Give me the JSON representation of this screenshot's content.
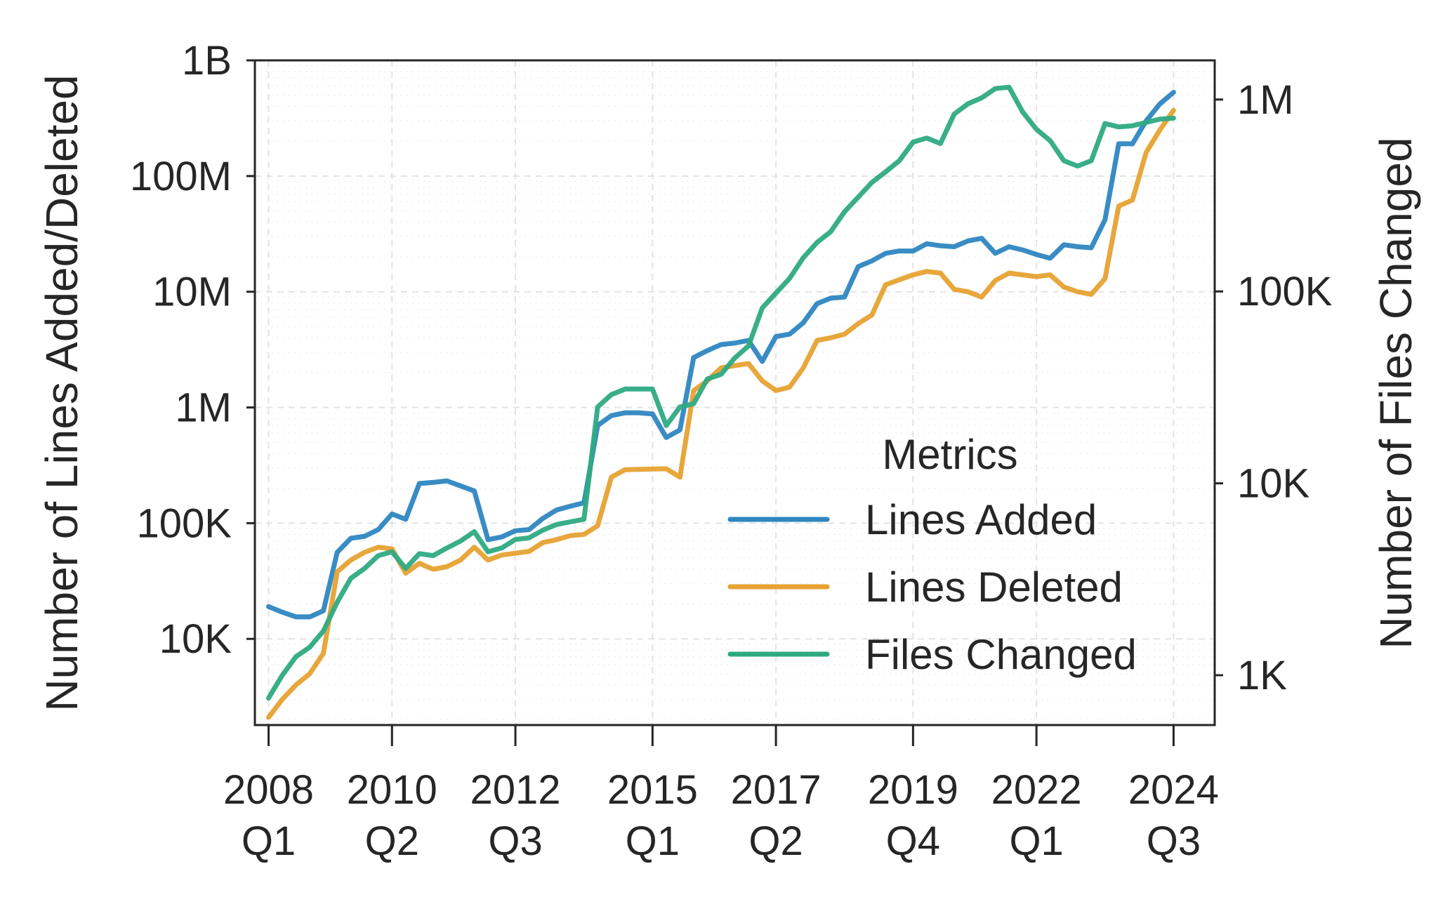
{
  "chart_data": {
    "type": "line",
    "xlabel": "",
    "ylabel": "Number of Lines Added/Deleted",
    "ylabel_right": "Number of Files Changed",
    "x_ticks": [
      {
        "year": "2008",
        "quarter": "Q1"
      },
      {
        "year": "2010",
        "quarter": "Q2"
      },
      {
        "year": "2012",
        "quarter": "Q3"
      },
      {
        "year": "2015",
        "quarter": "Q1"
      },
      {
        "year": "2017",
        "quarter": "Q2"
      },
      {
        "year": "2019",
        "quarter": "Q4"
      },
      {
        "year": "2022",
        "quarter": "Q1"
      },
      {
        "year": "2024",
        "quarter": "Q3"
      }
    ],
    "y_left": {
      "scale": "log",
      "ticks": [
        "10K",
        "100K",
        "1M",
        "10M",
        "100M",
        "1B"
      ],
      "range": [
        1800,
        1000000000
      ]
    },
    "y_right": {
      "scale": "log",
      "ticks": [
        "1K",
        "10K",
        "100K",
        "1M"
      ],
      "range": [
        550,
        1600000
      ]
    },
    "grid": true,
    "legend": {
      "title": "Metrics",
      "placement": "lower-right"
    },
    "x_range": [
      "2007 Q4",
      "2025 Q2"
    ],
    "series": [
      {
        "name": "Lines Added",
        "axis": "left",
        "color": "#2e86c1",
        "x": [
          "2008 Q1",
          "2008 Q2",
          "2008 Q3",
          "2008 Q4",
          "2009 Q1",
          "2009 Q2",
          "2009 Q3",
          "2009 Q4",
          "2010 Q1",
          "2010 Q2",
          "2010 Q3",
          "2010 Q4",
          "2011 Q1",
          "2011 Q2",
          "2011 Q3",
          "2011 Q4",
          "2012 Q1",
          "2012 Q2",
          "2012 Q3",
          "2012 Q4",
          "2013 Q1",
          "2013 Q2",
          "2013 Q3",
          "2013 Q4",
          "2014 Q1",
          "2014 Q2",
          "2014 Q3",
          "2014 Q4",
          "2015 Q1",
          "2015 Q2",
          "2015 Q3",
          "2015 Q4",
          "2016 Q1",
          "2016 Q2",
          "2016 Q3",
          "2016 Q4",
          "2017 Q1",
          "2017 Q2",
          "2017 Q3",
          "2017 Q4",
          "2018 Q1",
          "2018 Q2",
          "2018 Q3",
          "2018 Q4",
          "2019 Q1",
          "2019 Q2",
          "2019 Q3",
          "2019 Q4",
          "2020 Q1",
          "2020 Q2",
          "2020 Q3",
          "2020 Q4",
          "2021 Q1",
          "2021 Q2",
          "2021 Q3",
          "2021 Q4",
          "2022 Q1",
          "2022 Q2",
          "2022 Q3",
          "2022 Q4",
          "2023 Q1",
          "2023 Q2",
          "2023 Q3",
          "2023 Q4",
          "2024 Q1",
          "2024 Q2",
          "2024 Q3"
        ],
        "values": [
          19000,
          17000,
          15500,
          15500,
          17500,
          56000,
          74000,
          77000,
          88000,
          120000,
          108000,
          220000,
          225000,
          232000,
          210000,
          190000,
          72000,
          76000,
          86000,
          88000,
          110000,
          130000,
          140000,
          150000,
          700000,
          850000,
          900000,
          900000,
          880000,
          550000,
          640000,
          2700000,
          3100000,
          3500000,
          3600000,
          3800000,
          2500000,
          4100000,
          4300000,
          5400000,
          7900000,
          8800000,
          9000000,
          16500000,
          18500000,
          21500000,
          22500000,
          22500000,
          26000000,
          25000000,
          24500000,
          27500000,
          29000000,
          21500000,
          24500000,
          23000000,
          21000000,
          19500000,
          25500000,
          24500000,
          24000000,
          42000000,
          190000000,
          190000000,
          300000000,
          420000000,
          530000000
        ]
      },
      {
        "name": "Lines Deleted",
        "axis": "left",
        "color": "#e6a232",
        "x": [
          "2008 Q1",
          "2008 Q2",
          "2008 Q3",
          "2008 Q4",
          "2009 Q1",
          "2009 Q2",
          "2009 Q3",
          "2009 Q4",
          "2010 Q1",
          "2010 Q2",
          "2010 Q3",
          "2010 Q4",
          "2011 Q1",
          "2011 Q2",
          "2011 Q3",
          "2011 Q4",
          "2012 Q1",
          "2012 Q2",
          "2012 Q3",
          "2012 Q4",
          "2013 Q1",
          "2013 Q2",
          "2013 Q3",
          "2013 Q4",
          "2014 Q1",
          "2014 Q2",
          "2014 Q3",
          "2014 Q4",
          "2015 Q1",
          "2015 Q2",
          "2015 Q3",
          "2015 Q4",
          "2016 Q1",
          "2016 Q2",
          "2016 Q3",
          "2016 Q4",
          "2017 Q1",
          "2017 Q2",
          "2017 Q3",
          "2017 Q4",
          "2018 Q1",
          "2018 Q2",
          "2018 Q3",
          "2018 Q4",
          "2019 Q1",
          "2019 Q2",
          "2019 Q3",
          "2019 Q4",
          "2020 Q1",
          "2020 Q2",
          "2020 Q3",
          "2020 Q4",
          "2021 Q1",
          "2021 Q2",
          "2021 Q3",
          "2021 Q4",
          "2022 Q1",
          "2022 Q2",
          "2022 Q3",
          "2022 Q4",
          "2023 Q1",
          "2023 Q2",
          "2023 Q3",
          "2023 Q4",
          "2024 Q1",
          "2024 Q2",
          "2024 Q3"
        ],
        "values": [
          2100,
          3000,
          4000,
          5000,
          7500,
          38000,
          48000,
          56000,
          62000,
          60000,
          37000,
          45000,
          40000,
          42000,
          48000,
          62000,
          48000,
          53000,
          55000,
          57000,
          68000,
          72000,
          78000,
          80000,
          95000,
          250000,
          290000,
          292000,
          294000,
          295000,
          250000,
          1400000,
          1700000,
          2200000,
          2300000,
          2400000,
          1700000,
          1400000,
          1500000,
          2200000,
          3800000,
          4000000,
          4300000,
          5300000,
          6300000,
          11500000,
          12700000,
          14000000,
          15000000,
          14500000,
          10500000,
          10000000,
          9000000,
          12500000,
          14500000,
          14000000,
          13500000,
          14000000,
          11000000,
          10000000,
          9500000,
          13000000,
          55000000,
          62000000,
          160000000,
          250000000,
          370000000
        ]
      },
      {
        "name": "Files Changed",
        "axis": "right",
        "color": "#2eaa82",
        "x": [
          "2008 Q1",
          "2008 Q2",
          "2008 Q3",
          "2008 Q4",
          "2009 Q1",
          "2009 Q2",
          "2009 Q3",
          "2009 Q4",
          "2010 Q1",
          "2010 Q2",
          "2010 Q3",
          "2010 Q4",
          "2011 Q1",
          "2011 Q2",
          "2011 Q3",
          "2011 Q4",
          "2012 Q1",
          "2012 Q2",
          "2012 Q3",
          "2012 Q4",
          "2013 Q1",
          "2013 Q2",
          "2013 Q3",
          "2013 Q4",
          "2014 Q1",
          "2014 Q2",
          "2014 Q3",
          "2014 Q4",
          "2015 Q1",
          "2015 Q2",
          "2015 Q3",
          "2015 Q4",
          "2016 Q1",
          "2016 Q2",
          "2016 Q3",
          "2016 Q4",
          "2017 Q1",
          "2017 Q2",
          "2017 Q3",
          "2017 Q4",
          "2018 Q1",
          "2018 Q2",
          "2018 Q3",
          "2018 Q4",
          "2019 Q1",
          "2019 Q2",
          "2019 Q3",
          "2019 Q4",
          "2020 Q1",
          "2020 Q2",
          "2020 Q3",
          "2020 Q4",
          "2021 Q1",
          "2021 Q2",
          "2021 Q3",
          "2021 Q4",
          "2022 Q1",
          "2022 Q2",
          "2022 Q3",
          "2022 Q4",
          "2023 Q1",
          "2023 Q2",
          "2023 Q3",
          "2023 Q4",
          "2024 Q1",
          "2024 Q2",
          "2024 Q3"
        ],
        "values": [
          760,
          1000,
          1250,
          1400,
          1700,
          2400,
          3200,
          3600,
          4200,
          4400,
          3600,
          4300,
          4200,
          4600,
          5000,
          5600,
          4400,
          4600,
          5100,
          5200,
          5700,
          6100,
          6300,
          6500,
          25000,
          29000,
          31000,
          31000,
          31000,
          20000,
          25000,
          26000,
          35000,
          37000,
          45000,
          52000,
          82000,
          98000,
          117000,
          150000,
          180000,
          205000,
          260000,
          310000,
          370000,
          420000,
          480000,
          600000,
          630000,
          590000,
          840000,
          950000,
          1020000,
          1140000,
          1160000,
          860000,
          700000,
          610000,
          480000,
          450000,
          480000,
          750000,
          720000,
          730000,
          760000,
          790000,
          800000
        ]
      }
    ]
  }
}
